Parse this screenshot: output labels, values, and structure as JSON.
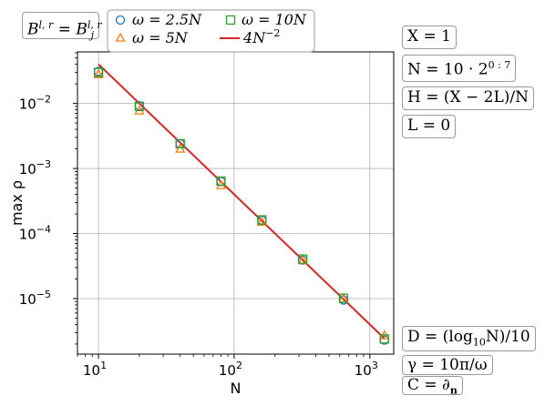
{
  "chart_data": {
    "type": "scatter",
    "xlabel": "N",
    "ylabel": "max ρ",
    "xscale": "log",
    "yscale": "log",
    "xlim": [
      7,
      1500
    ],
    "ylim": [
      1.4e-06,
      0.062
    ],
    "grid": true,
    "x_ticks": [
      {
        "value": 10,
        "base": "10",
        "exp": "1"
      },
      {
        "value": 100,
        "base": "10",
        "exp": "2"
      },
      {
        "value": 1000,
        "base": "10",
        "exp": "3"
      }
    ],
    "y_ticks": [
      {
        "value": 1e-05,
        "base": "10",
        "exp": "−5"
      },
      {
        "value": 0.0001,
        "base": "10",
        "exp": "−4"
      },
      {
        "value": 0.001,
        "base": "10",
        "exp": "−3"
      },
      {
        "value": 0.01,
        "base": "10",
        "exp": "−2"
      }
    ],
    "x": [
      10,
      20,
      40,
      80,
      160,
      320,
      640,
      1280
    ],
    "series": [
      {
        "name": "ω = 2.5N",
        "marker": "circle",
        "color": "#1f77b4",
        "values": [
          0.031,
          0.0092,
          0.0024,
          0.00063,
          0.00016,
          3.9e-05,
          9.5e-06,
          2.3e-06
        ]
      },
      {
        "name": "ω = 5N",
        "marker": "triangle",
        "color": "#ff7f0e",
        "values": [
          0.028,
          0.0077,
          0.002,
          0.00055,
          0.00015,
          3.85e-05,
          1e-05,
          2.7e-06
        ]
      },
      {
        "name": "ω = 10N",
        "marker": "square",
        "color": "#2ca02c",
        "values": [
          0.03,
          0.009,
          0.0024,
          0.00064,
          0.000162,
          4.05e-05,
          1.01e-05,
          2.4e-06
        ]
      }
    ],
    "reference_line": {
      "name": "4N^{−2}",
      "coefficient": 4,
      "exponent": -2,
      "color": "#d62728"
    },
    "legend_placement": "top, outside"
  },
  "annotations": {
    "top_left_box": {
      "lhs": "B",
      "lhs_sup": "l, r",
      "eq": " = ",
      "rhs": "B",
      "rhs_sub": "j",
      "rhs_sup": "l, r"
    },
    "right_top": [
      "X = 1",
      "N = 10 · 2",
      "H = (X − 2L)/N",
      "L = 0"
    ],
    "n_exponent": "0 : 7",
    "right_bottom": [
      "D = (log",
      "γ = 10π/ω",
      "C = ∂"
    ],
    "log_sub": "10",
    "log_rest": "N)/10",
    "c_sub": "n"
  }
}
